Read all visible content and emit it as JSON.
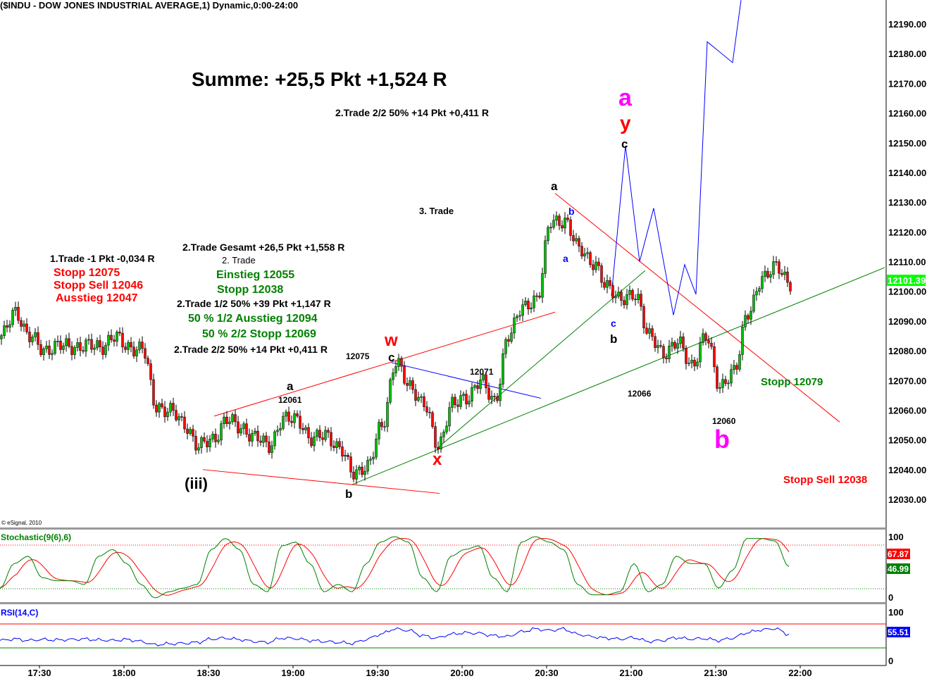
{
  "header": {
    "title": "($INDU - DOW JONES INDUSTRIAL AVERAGE,1) Dynamic,0:00-24:00",
    "copyright": "© eSignal, 2010"
  },
  "colors": {
    "up": "#00c000",
    "down": "#ff0000",
    "stoch_k": "#008000",
    "stoch_d": "#ff0000",
    "rsi": "#0000ff",
    "magenta": "#ff00ff",
    "green_text": "#008000",
    "red_text": "#ff0000"
  },
  "chart_data": {
    "type": "candlestick",
    "symbol": "$INDU",
    "bar_interval_min": 1,
    "start_time": "17:16",
    "closes_every_5min": [
      12084,
      12094,
      12084,
      12081,
      12081,
      12082,
      12081,
      12082,
      12084,
      12082,
      12080,
      12062,
      12059,
      12056,
      12047,
      12051,
      12056,
      12055,
      12050,
      12049,
      12056,
      12058,
      12049,
      12053,
      12046,
      12040,
      12040,
      12056,
      12075,
      12069,
      12061,
      12049,
      12061,
      12065,
      12069,
      12064,
      12084,
      12096,
      12096,
      12125,
      12122,
      12116,
      12108,
      12103,
      12096,
      12100,
      12084,
      12080,
      12082,
      12076,
      12084,
      12069,
      12072,
      12094,
      12103,
      12110,
      12101
    ],
    "ylim": [
      12022,
      12198
    ],
    "price_ticks": [
      "12190.00",
      "12180.00",
      "12170.00",
      "12160.00",
      "12150.00",
      "12140.00",
      "12130.00",
      "12120.00",
      "12110.00",
      "12100.00",
      "12090.00",
      "12080.00",
      "12070.00",
      "12060.00",
      "12050.00",
      "12040.00",
      "12030.00"
    ],
    "time_ticks": [
      "17:30",
      "18:00",
      "18:30",
      "19:00",
      "19:30",
      "20:00",
      "20:30",
      "21:00",
      "21:30",
      "22:00"
    ],
    "last_price": "12101.39",
    "overlays": [
      {
        "name": "upper-red-trendline",
        "color": "#ff0000",
        "points": [
          [
            76,
            12058
          ],
          [
            197,
            12093
          ]
        ]
      },
      {
        "name": "lower-red-trendline",
        "color": "#ff0000",
        "points": [
          [
            72,
            12040
          ],
          [
            156,
            12032
          ]
        ]
      },
      {
        "name": "long-green-trendline",
        "color": "#008000",
        "points": [
          [
            125,
            12035
          ],
          [
            314,
            12108
          ]
        ]
      },
      {
        "name": "short-green-trendline",
        "color": "#008000",
        "points": [
          [
            155,
            12047
          ],
          [
            229,
            12107
          ]
        ]
      },
      {
        "name": "blue-trendline",
        "color": "#0000ff",
        "points": [
          [
            139,
            12076
          ],
          [
            192,
            12064
          ]
        ]
      },
      {
        "name": "falling-red-trendline",
        "color": "#ff0000",
        "points": [
          [
            197,
            12133
          ],
          [
            298,
            12056
          ]
        ]
      },
      {
        "name": "blue-projection",
        "color": "#0000ff",
        "points": [
          [
            217,
            12098.5
          ],
          [
            222,
            12149
          ],
          [
            227,
            12110
          ],
          [
            232,
            12128
          ],
          [
            239,
            12092
          ],
          [
            243,
            12109
          ],
          [
            247,
            12099
          ],
          [
            251,
            12184
          ],
          [
            260,
            12177
          ],
          [
            263,
            12198
          ]
        ]
      }
    ],
    "stochastic": {
      "label": "Stochastic(9(6),6)",
      "k_every_5min": [
        16,
        56,
        68,
        33,
        28,
        28,
        22,
        68,
        79,
        56,
        22,
        0,
        10,
        16,
        22,
        79,
        97,
        79,
        22,
        10,
        85,
        91,
        56,
        10,
        22,
        10,
        56,
        91,
        100,
        91,
        33,
        10,
        68,
        79,
        85,
        33,
        10,
        91,
        100,
        91,
        79,
        22,
        5,
        5,
        10,
        56,
        10,
        22,
        68,
        56,
        56,
        16,
        45,
        97,
        97,
        93,
        51
      ],
      "ticks": [
        "100",
        "0"
      ],
      "levels": [
        80,
        20
      ],
      "k_value": "46.99",
      "d_value": "67.87"
    },
    "rsi": {
      "label": "RSI(14,C)",
      "values_every_5min": [
        42,
        45,
        42,
        44,
        43,
        44,
        45,
        43,
        42,
        44,
        40,
        33,
        35,
        36,
        38,
        45,
        47,
        44,
        40,
        38,
        47,
        46,
        42,
        40,
        38,
        36,
        44,
        55,
        66,
        63,
        52,
        47,
        55,
        58,
        57,
        52,
        50,
        60,
        66,
        63,
        66,
        55,
        50,
        47,
        45,
        48,
        40,
        42,
        48,
        45,
        46,
        42,
        47,
        58,
        64,
        67,
        55
      ],
      "ticks": [
        "100",
        "0"
      ],
      "levels": [
        70,
        30
      ],
      "value": "55.51"
    }
  },
  "annotations": {
    "summe": "Summe: +25,5 Pkt +1,524 R",
    "trade2_2_top": "2.Trade 2/2 50% +14 Pkt +0,411 R",
    "trade3": "3. Trade",
    "trade1": "1.Trade -1 Pkt -0,034 R",
    "stopp12075": "Stopp 12075",
    "stopp_sell12046": "Stopp Sell 12046",
    "ausstieg12047": "Ausstieg 12047",
    "trade2_gesamt": "2.Trade Gesamt +26,5 Pkt +1,558 R",
    "trade2": "2. Trade",
    "einstieg": "Einstieg 12055",
    "stopp12038": "Stopp 12038",
    "trade2_half": "2.Trade 1/2 50% +39 Pkt +1,147 R",
    "ausstieg12094": "50 % 1/2 Ausstieg 12094",
    "stopp12069": "50 % 2/2 Stopp 12069",
    "trade2_2": "2.Trade 2/2 50% +14 Pkt +0,411 R",
    "p12075": "12075",
    "p12061": "12061",
    "p12071": "12071",
    "p12066": "12066",
    "p12060": "12060",
    "stopp12079": "Stopp 12079",
    "stopp_sell12038": "Stopp Sell 12038",
    "iii": "(iii)",
    "a1": "a",
    "b1": "b",
    "w": "w",
    "c1": "c",
    "x": "x",
    "a2": "a",
    "b_blue": "b",
    "a_blue": "a",
    "c_blue": "c",
    "b2": "b",
    "a_mag": "a",
    "y": "y",
    "c2": "c",
    "b_mag": "b"
  }
}
